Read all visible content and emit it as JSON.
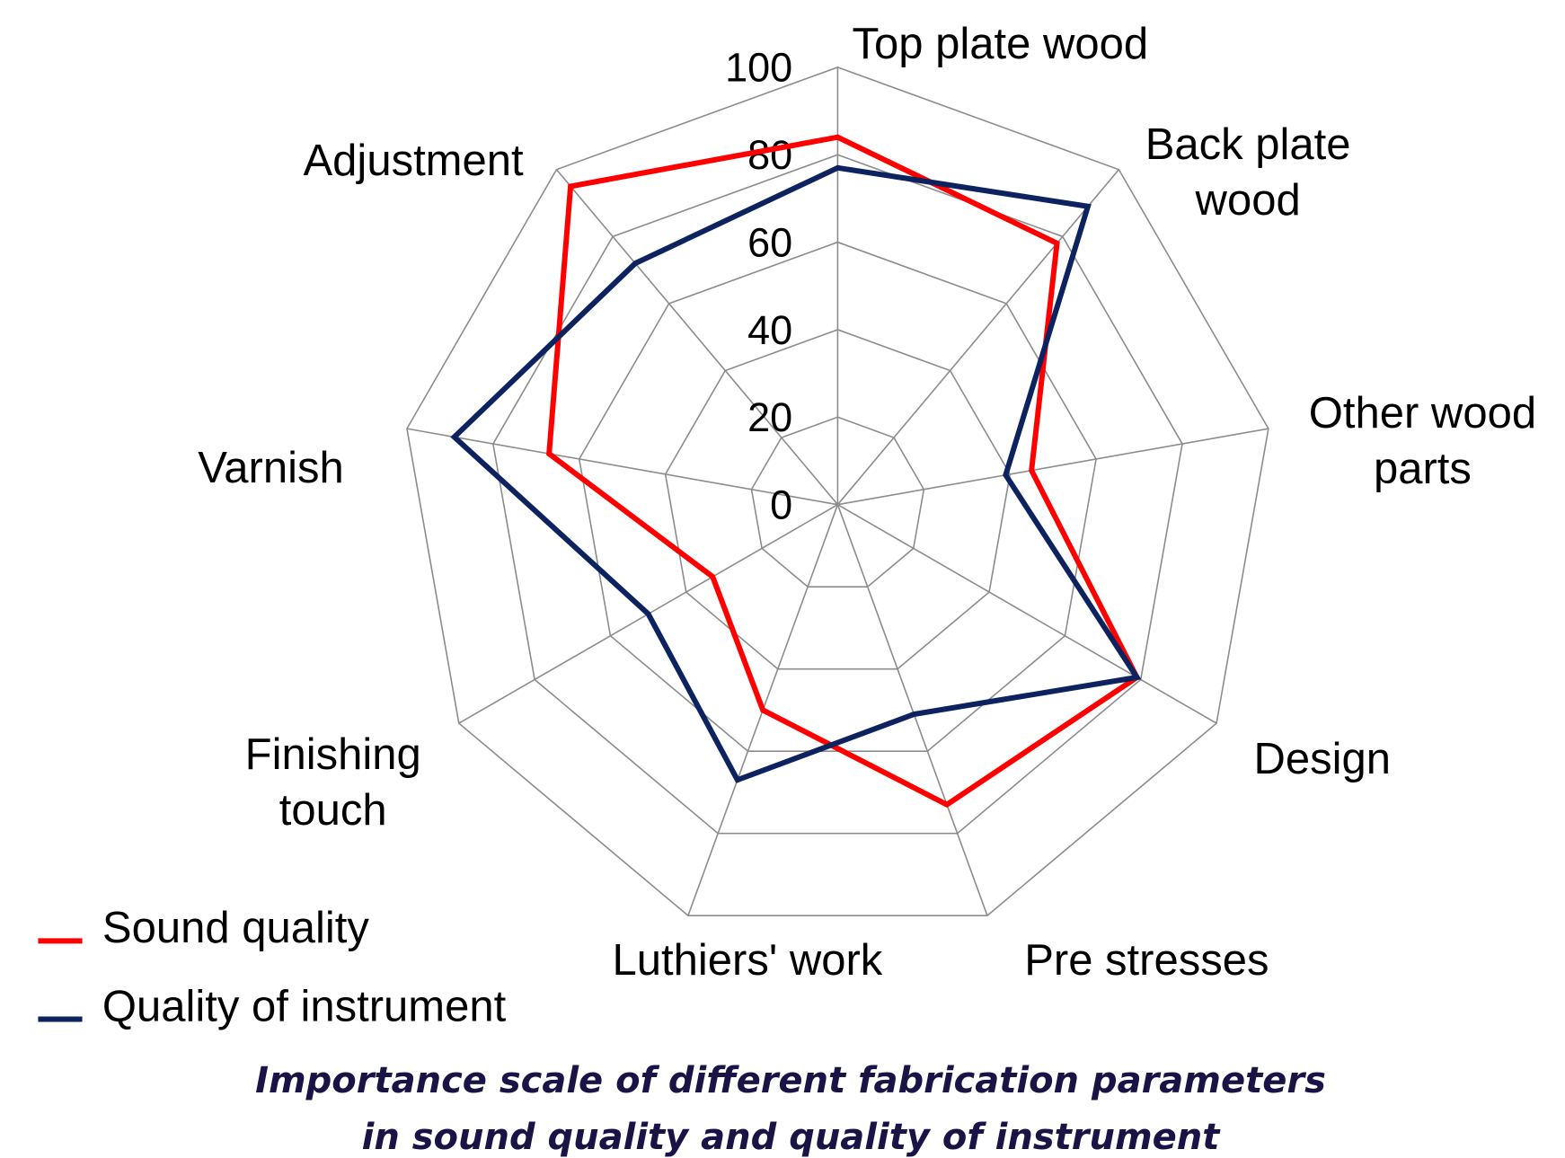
{
  "chart_data": {
    "type": "radar",
    "categories": [
      "Top plate wood",
      "Back plate wood",
      "Other wood parts",
      "Design",
      "Pre stresses",
      "Luthiers' work",
      "Finishing touch",
      "Varnish",
      "Adjustment"
    ],
    "series": [
      {
        "name": "Sound quality",
        "color": "#ff0000",
        "values": [
          84,
          78,
          45,
          79,
          73,
          50,
          33,
          67,
          95
        ]
      },
      {
        "name": "Quality of instrument",
        "color": "#0d2360",
        "values": [
          77,
          89,
          39,
          79,
          51,
          67,
          50,
          89,
          72
        ]
      }
    ],
    "ylim": [
      0,
      100
    ],
    "yticks": [
      0,
      20,
      40,
      60,
      80,
      100
    ],
    "grid": true,
    "caption": [
      "Importance scale of different fabrication parameters",
      "in sound quality and quality of instrument"
    ]
  }
}
